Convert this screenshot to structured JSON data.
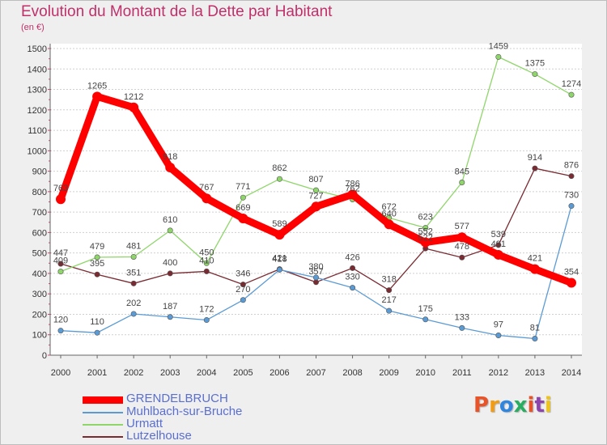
{
  "title": "Evolution du Montant de la Dette par Habitant",
  "subtitle": "(en €)",
  "logo": {
    "text": "Proxiti",
    "colors": [
      "#e8542a",
      "#f39c12",
      "#2e86de",
      "#27ae60",
      "#e8542a",
      "#8e44ad",
      "#f1c40f"
    ]
  },
  "chart_data": {
    "type": "line",
    "x": [
      "2000",
      "2001",
      "2002",
      "2003",
      "2004",
      "2005",
      "2006",
      "2007",
      "2008",
      "2009",
      "2010",
      "2011",
      "2012",
      "2013",
      "2014"
    ],
    "ylim": [
      0,
      1500
    ],
    "yticks": [
      "0",
      "100",
      "200",
      "300",
      "400",
      "500",
      "600",
      "700",
      "800",
      "900",
      "1000",
      "1100",
      "1200",
      "1300",
      "1400",
      "1500"
    ],
    "grid": "y",
    "legend_position": "bottom-left",
    "series": [
      {
        "name": "GRENDELBRUCH",
        "color": "#ff0000",
        "emphasis": true,
        "values": [
          763,
          1265,
          1212,
          918,
          767,
          669,
          589,
          727,
          786,
          640,
          552,
          577,
          491,
          421,
          354
        ],
        "labels": [
          "763",
          "1265",
          "1212",
          "918",
          "767",
          "669",
          "589",
          "727",
          "786",
          "640",
          "552",
          "577",
          "491",
          "421",
          "354"
        ]
      },
      {
        "name": "Muhlbach-sur-Bruche",
        "color": "#5b9bd5",
        "values": [
          120,
          110,
          202,
          187,
          172,
          270,
          418,
          380,
          330,
          217,
          175,
          133,
          97,
          81,
          730
        ],
        "labels": [
          "120",
          "110",
          "202",
          "187",
          "172",
          "270",
          "418",
          "380",
          "330",
          "217",
          "175",
          "133",
          "97",
          "81",
          "730"
        ]
      },
      {
        "name": "Urmatt",
        "color": "#8fd66a",
        "values": [
          409,
          479,
          481,
          610,
          450,
          771,
          862,
          807,
          762,
          672,
          623,
          845,
          1459,
          1375,
          1274
        ],
        "labels": [
          "409",
          "479",
          "481",
          "610",
          "450",
          "771",
          "862",
          "807",
          "762",
          "672",
          "623",
          "845",
          "1459",
          "1375",
          "1274"
        ]
      },
      {
        "name": "Lutzelhouse",
        "color": "#7a2b32",
        "values": [
          447,
          395,
          351,
          400,
          410,
          346,
          421,
          357,
          426,
          318,
          522,
          478,
          539,
          914,
          876
        ],
        "labels": [
          "447",
          "395",
          "351",
          "400",
          "410",
          "346",
          "421",
          "357",
          "426",
          "318",
          "522",
          "478",
          "539",
          "914",
          "876"
        ]
      }
    ]
  }
}
